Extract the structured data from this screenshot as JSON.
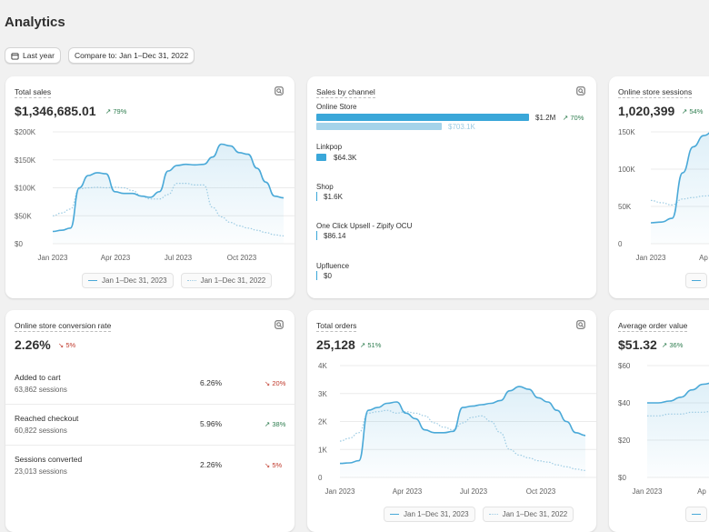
{
  "page": {
    "title": "Analytics"
  },
  "filters": {
    "date_range": "Last year",
    "compare": "Compare to: Jan 1–Dec 31, 2022"
  },
  "legend": {
    "current": "Jan 1–Dec 31, 2023",
    "previous": "Jan 1–Dec 31, 2022"
  },
  "colors": {
    "current": "#4aa9d8",
    "previous": "#9ccbe3",
    "up": "#2e7d4f",
    "down": "#c0392b"
  },
  "icons": {
    "card_action": "chart-explore-icon",
    "calendar": "calendar-icon"
  },
  "total_sales": {
    "title": "Total sales",
    "value": "$1,346,685.01",
    "delta": "79%",
    "chart_data": {
      "type": "line",
      "x_ticks": [
        "Jan 2023",
        "Apr 2023",
        "Jul 2023",
        "Oct 2023"
      ],
      "y_ticks": [
        "$200K",
        "$150K",
        "$100K",
        "$50K",
        "$0"
      ],
      "ylim": [
        0,
        200000
      ],
      "series": [
        {
          "name": "Jan 1–Dec 31, 2023",
          "values": [
            22000,
            24000,
            28000,
            100000,
            122000,
            127000,
            125000,
            93000,
            90000,
            90000,
            85000,
            83000,
            93000,
            130000,
            140000,
            142000,
            141000,
            142000,
            155000,
            178000,
            175000,
            163000,
            160000,
            135000,
            110000,
            85000,
            82000
          ]
        },
        {
          "name": "Jan 1–Dec 31, 2022",
          "values": [
            50000,
            55000,
            62000,
            98000,
            100000,
            101000,
            100000,
            101000,
            100000,
            95000,
            85000,
            80000,
            80000,
            88000,
            108000,
            108000,
            105000,
            105000,
            65000,
            48000,
            38000,
            32000,
            28000,
            24000,
            20000,
            16000,
            14000
          ]
        }
      ]
    }
  },
  "sales_by_channel": {
    "title": "Sales by channel",
    "channels": [
      {
        "name": "Online Store",
        "value": "$1.2M",
        "delta": "70%",
        "previous": "$703.1K",
        "bar": 1.0,
        "prev_bar": 0.6
      },
      {
        "name": "Linkpop",
        "value": "$64.3K",
        "bar": 0.05
      },
      {
        "name": "Shop",
        "value": "$1.6K",
        "bar": 0.002
      },
      {
        "name": "One Click Upsell - Zipify OCU",
        "value": "$86.14",
        "bar": 0.0
      },
      {
        "name": "Upfluence",
        "value": "$0",
        "bar": 0.0
      }
    ]
  },
  "sessions": {
    "title": "Online store sessions",
    "value": "1,020,399",
    "delta": "54%",
    "chart_data": {
      "type": "line",
      "x_ticks": [
        "Jan 2023",
        "Ap"
      ],
      "y_ticks": [
        "150K",
        "100K",
        "50K",
        "0"
      ],
      "ylim": [
        0,
        150000
      ],
      "series": [
        {
          "name": "Jan 1–Dec 31, 2023",
          "values": [
            28000,
            29000,
            34000,
            95000,
            130000,
            145000,
            152000
          ]
        },
        {
          "name": "Jan 1–Dec 31, 2022",
          "values": [
            58000,
            55000,
            52000,
            60000,
            62000,
            64000,
            65000
          ]
        }
      ]
    }
  },
  "conversion": {
    "title": "Online store conversion rate",
    "value": "2.26%",
    "delta": "5%",
    "rows": [
      {
        "label": "Added to cart",
        "sessions": "63,862 sessions",
        "value": "6.26%",
        "delta": "20%",
        "direction": "down"
      },
      {
        "label": "Reached checkout",
        "sessions": "60,822 sessions",
        "value": "5.96%",
        "delta": "38%",
        "direction": "up"
      },
      {
        "label": "Sessions converted",
        "sessions": "23,013 sessions",
        "value": "2.26%",
        "delta": "5%",
        "direction": "down"
      }
    ]
  },
  "total_orders": {
    "title": "Total orders",
    "value": "25,128",
    "delta": "51%",
    "chart_data": {
      "type": "line",
      "x_ticks": [
        "Jan 2023",
        "Apr 2023",
        "Jul 2023",
        "Oct 2023"
      ],
      "y_ticks": [
        "4K",
        "3K",
        "2K",
        "1K",
        "0"
      ],
      "ylim": [
        0,
        4000
      ],
      "series": [
        {
          "name": "Jan 1–Dec 31, 2023",
          "values": [
            500,
            520,
            600,
            2400,
            2500,
            2650,
            2700,
            2300,
            2100,
            1700,
            1600,
            1600,
            1650,
            2500,
            2550,
            2600,
            2650,
            2750,
            3100,
            3250,
            3150,
            2850,
            2700,
            2400,
            2000,
            1600,
            1500
          ]
        },
        {
          "name": "Jan 1–Dec 31, 2022",
          "values": [
            1300,
            1400,
            1600,
            2300,
            2350,
            2400,
            2300,
            2350,
            2300,
            2200,
            1950,
            1800,
            1700,
            1950,
            2150,
            2200,
            2000,
            1600,
            1000,
            800,
            700,
            600,
            550,
            450,
            380,
            300,
            250
          ]
        }
      ]
    }
  },
  "aov": {
    "title": "Average order value",
    "value": "$51.32",
    "delta": "36%",
    "chart_data": {
      "type": "line",
      "x_ticks": [
        "Jan 2023",
        "Ap"
      ],
      "y_ticks": [
        "$60",
        "$40",
        "$20",
        "$0"
      ],
      "ylim": [
        0,
        60
      ],
      "series": [
        {
          "name": "Jan 1–Dec 31, 2023",
          "values": [
            40,
            40,
            41,
            43,
            47,
            50,
            51
          ]
        },
        {
          "name": "Jan 1–Dec 31, 2022",
          "values": [
            33,
            33,
            34,
            34,
            35,
            35,
            36
          ]
        }
      ]
    }
  }
}
